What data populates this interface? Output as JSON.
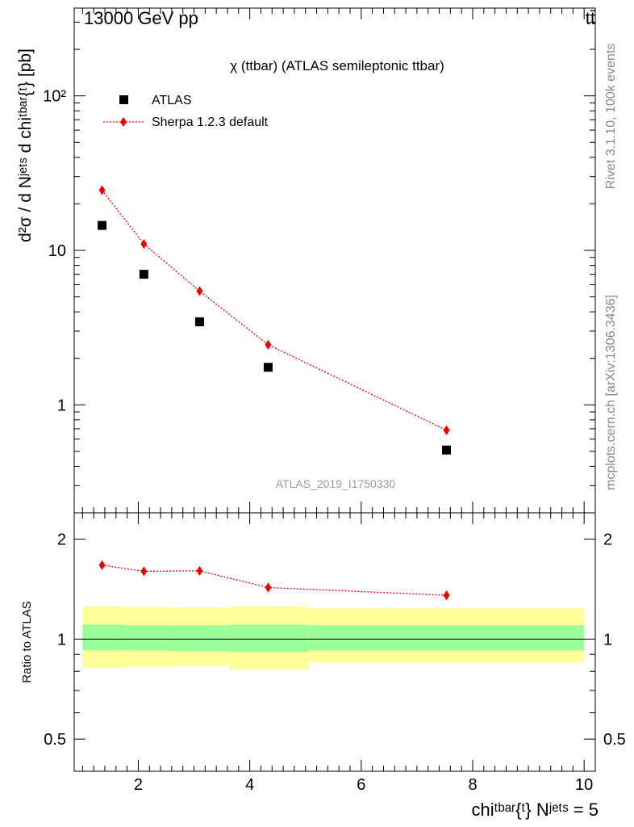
{
  "header": {
    "beam_label": "13000 GeV pp",
    "process_label": "tt̄"
  },
  "side_labels": {
    "rivet_info": "Rivet 3.1.10,  100k events",
    "source_info": "mcplots.cern.ch [arXiv:1306.3436]"
  },
  "main_plot": {
    "title": "χ (ttbar) (ATLAS semileptonic ttbar)",
    "analysis_id": "ATLAS_2019_I1750330",
    "ylabel": "d²σ / d Nʲᵉᵗˢ d chiᵗᵇᵃʳ{ᵗ} [pb]",
    "ytick_labels": [
      "1",
      "10",
      "10²"
    ]
  },
  "ratio_plot": {
    "ylabel": "Ratio to ATLAS",
    "ytick_labels": [
      "0.5",
      "1",
      "2"
    ]
  },
  "xaxis": {
    "label": "chiᵗᵇᵃʳ{ᵗ} Nʲᵉᵗˢ = 5",
    "tick_labels": [
      "2",
      "4",
      "6",
      "8",
      "10"
    ]
  },
  "colors": {
    "data": "#000000",
    "mc": "#ee0000",
    "band_inner": "#99ff99",
    "band_outer": "#ffff99"
  },
  "chart_data": [
    {
      "type": "scatter",
      "panel": "main",
      "xlim": [
        0.85,
        10.2
      ],
      "ylim": [
        0.2,
        370
      ],
      "log_y": true,
      "grid": false,
      "legend_position": "top-left",
      "series": [
        {
          "name": "ATLAS",
          "marker": "square",
          "x": [
            1.35,
            2.1,
            3.1,
            4.33,
            7.53
          ],
          "y": [
            14.5,
            7.0,
            3.45,
            1.75,
            0.51
          ]
        },
        {
          "name": "Sherpa 1.2.3 default",
          "marker": "diamond",
          "line": "dotted",
          "x": [
            1.35,
            2.1,
            3.1,
            4.33,
            7.53
          ],
          "y": [
            24.5,
            11.0,
            5.45,
            2.45,
            0.685
          ]
        }
      ]
    },
    {
      "type": "line",
      "panel": "ratio",
      "xlim": [
        0.85,
        10.2
      ],
      "ylim": [
        0.4,
        2.4
      ],
      "log_y": true,
      "reference_line": 1.0,
      "bands": {
        "bins": [
          [
            1.0,
            1.75
          ],
          [
            1.75,
            2.55
          ],
          [
            2.55,
            3.65
          ],
          [
            3.65,
            5.05
          ],
          [
            5.05,
            10.0
          ]
        ],
        "inner_low": [
          0.925,
          0.925,
          0.92,
          0.915,
          0.925
        ],
        "inner_high": [
          1.105,
          1.1,
          1.1,
          1.105,
          1.1
        ],
        "outer_low": [
          0.82,
          0.825,
          0.83,
          0.81,
          0.85
        ],
        "outer_high": [
          1.255,
          1.25,
          1.245,
          1.255,
          1.24
        ]
      },
      "series": [
        {
          "name": "Sherpa 1.2.3 default",
          "marker": "diamond",
          "line": "dotted",
          "x": [
            1.35,
            2.1,
            3.1,
            4.33,
            7.53
          ],
          "y": [
            1.67,
            1.6,
            1.605,
            1.43,
            1.355
          ],
          "yerr": [
            0.03,
            0.02,
            0.025,
            0.045,
            0.045
          ]
        }
      ]
    }
  ]
}
